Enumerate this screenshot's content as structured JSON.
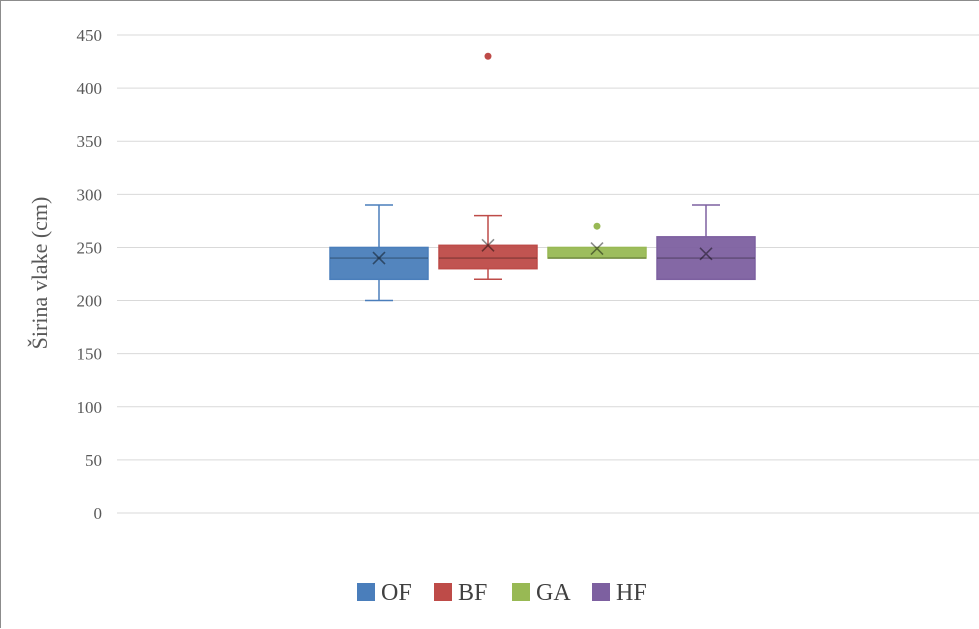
{
  "chart_data": {
    "type": "box",
    "xlabel": "",
    "ylabel": "Širina vlake (cm)",
    "ylim": [
      0,
      450
    ],
    "ytick_step": 50,
    "grid": true,
    "legend_position": "bottom",
    "series": [
      {
        "name": "OF",
        "color": "#4a7ebb",
        "whisker_min": 200,
        "q1": 220,
        "median": 240,
        "q3": 250,
        "whisker_max": 290,
        "mean": 240,
        "outliers": []
      },
      {
        "name": "BF",
        "color": "#be4b48",
        "whisker_min": 220,
        "q1": 230,
        "median": 240,
        "q3": 252,
        "whisker_max": 280,
        "mean": 252,
        "outliers": [
          430
        ]
      },
      {
        "name": "GA",
        "color": "#98b954",
        "whisker_min": 240,
        "q1": 240,
        "median": 240,
        "q3": 250,
        "whisker_max": 250,
        "mean": 249,
        "outliers": [
          270
        ]
      },
      {
        "name": "HF",
        "color": "#7d60a0",
        "whisker_min": 220,
        "q1": 220,
        "median": 240,
        "q3": 260,
        "whisker_max": 290,
        "mean": 244,
        "outliers": []
      }
    ]
  }
}
